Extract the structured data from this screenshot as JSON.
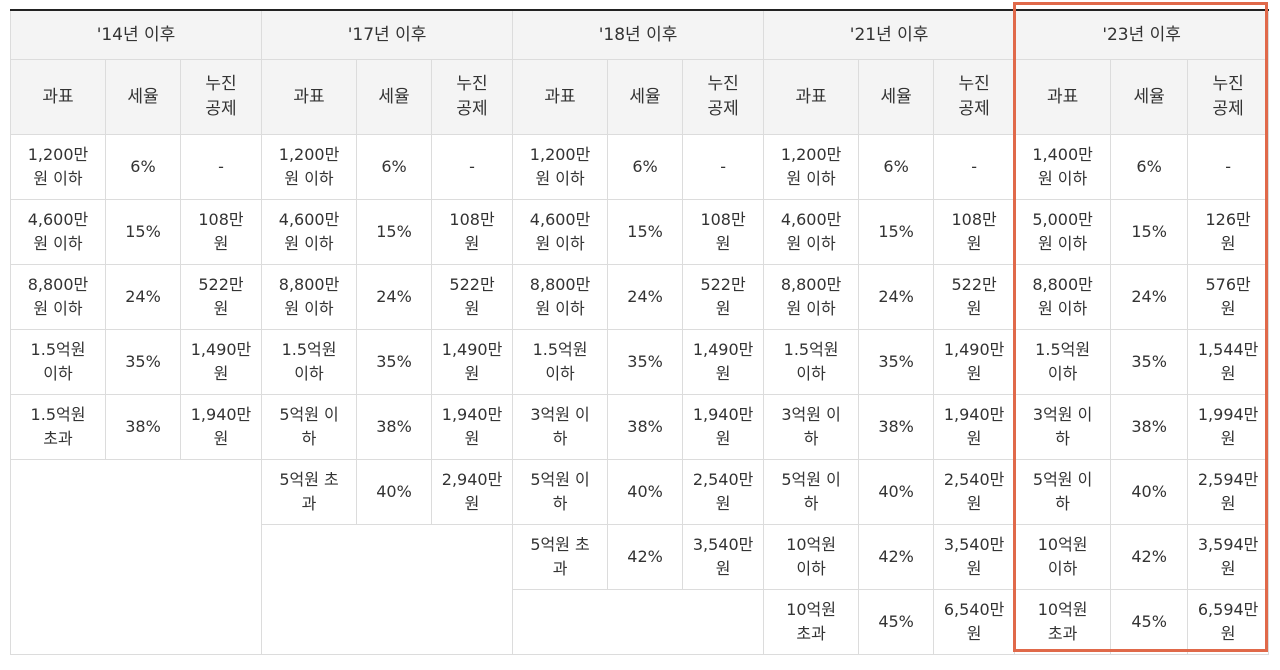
{
  "periods": [
    "'14년 이후",
    "'17년 이후",
    "'18년 이후",
    "'21년 이후",
    "'23년 이후"
  ],
  "col_headers": {
    "base": "과표",
    "rate": "세율",
    "deduction_line1": "누진",
    "deduction_line2": "공제"
  },
  "highlight_color": "#e0694a",
  "rows": [
    [
      {
        "b1": "1,200만",
        "b2": "원 이하",
        "r": "6%",
        "d1": "-",
        "d2": ""
      },
      {
        "b1": "1,200만",
        "b2": "원 이하",
        "r": "6%",
        "d1": "-",
        "d2": ""
      },
      {
        "b1": "1,200만",
        "b2": "원 이하",
        "r": "6%",
        "d1": "-",
        "d2": ""
      },
      {
        "b1": "1,200만",
        "b2": "원 이하",
        "r": "6%",
        "d1": "-",
        "d2": ""
      },
      {
        "b1": "1,400만",
        "b2": "원 이하",
        "r": "6%",
        "d1": "-",
        "d2": ""
      }
    ],
    [
      {
        "b1": "4,600만",
        "b2": "원 이하",
        "r": "15%",
        "d1": "108만",
        "d2": "원"
      },
      {
        "b1": "4,600만",
        "b2": "원 이하",
        "r": "15%",
        "d1": "108만",
        "d2": "원"
      },
      {
        "b1": "4,600만",
        "b2": "원 이하",
        "r": "15%",
        "d1": "108만",
        "d2": "원"
      },
      {
        "b1": "4,600만",
        "b2": "원 이하",
        "r": "15%",
        "d1": "108만",
        "d2": "원"
      },
      {
        "b1": "5,000만",
        "b2": "원 이하",
        "r": "15%",
        "d1": "126만",
        "d2": "원"
      }
    ],
    [
      {
        "b1": "8,800만",
        "b2": "원 이하",
        "r": "24%",
        "d1": "522만",
        "d2": "원"
      },
      {
        "b1": "8,800만",
        "b2": "원 이하",
        "r": "24%",
        "d1": "522만",
        "d2": "원"
      },
      {
        "b1": "8,800만",
        "b2": "원 이하",
        "r": "24%",
        "d1": "522만",
        "d2": "원"
      },
      {
        "b1": "8,800만",
        "b2": "원 이하",
        "r": "24%",
        "d1": "522만",
        "d2": "원"
      },
      {
        "b1": "8,800만",
        "b2": "원 이하",
        "r": "24%",
        "d1": "576만",
        "d2": "원"
      }
    ],
    [
      {
        "b1": "1.5억원",
        "b2": "이하",
        "r": "35%",
        "d1": "1,490만",
        "d2": "원"
      },
      {
        "b1": "1.5억원",
        "b2": "이하",
        "r": "35%",
        "d1": "1,490만",
        "d2": "원"
      },
      {
        "b1": "1.5억원",
        "b2": "이하",
        "r": "35%",
        "d1": "1,490만",
        "d2": "원"
      },
      {
        "b1": "1.5억원",
        "b2": "이하",
        "r": "35%",
        "d1": "1,490만",
        "d2": "원"
      },
      {
        "b1": "1.5억원",
        "b2": "이하",
        "r": "35%",
        "d1": "1,544만",
        "d2": "원"
      }
    ],
    [
      {
        "b1": "1.5억원",
        "b2": "초과",
        "r": "38%",
        "d1": "1,940만",
        "d2": "원"
      },
      {
        "b1": "5억원 이",
        "b2": "하",
        "r": "38%",
        "d1": "1,940만",
        "d2": "원"
      },
      {
        "b1": "3억원 이",
        "b2": "하",
        "r": "38%",
        "d1": "1,940만",
        "d2": "원"
      },
      {
        "b1": "3억원 이",
        "b2": "하",
        "r": "38%",
        "d1": "1,940만",
        "d2": "원"
      },
      {
        "b1": "3억원 이",
        "b2": "하",
        "r": "38%",
        "d1": "1,994만",
        "d2": "원"
      }
    ],
    [
      null,
      {
        "b1": "5억원 초",
        "b2": "과",
        "r": "40%",
        "d1": "2,940만",
        "d2": "원"
      },
      {
        "b1": "5억원 이",
        "b2": "하",
        "r": "40%",
        "d1": "2,540만",
        "d2": "원"
      },
      {
        "b1": "5억원 이",
        "b2": "하",
        "r": "40%",
        "d1": "2,540만",
        "d2": "원"
      },
      {
        "b1": "5억원 이",
        "b2": "하",
        "r": "40%",
        "d1": "2,594만",
        "d2": "원"
      }
    ],
    [
      null,
      null,
      {
        "b1": "5억원 초",
        "b2": "과",
        "r": "42%",
        "d1": "3,540만",
        "d2": "원"
      },
      {
        "b1": "10억원",
        "b2": "이하",
        "r": "42%",
        "d1": "3,540만",
        "d2": "원"
      },
      {
        "b1": "10억원",
        "b2": "이하",
        "r": "42%",
        "d1": "3,594만",
        "d2": "원"
      }
    ],
    [
      null,
      null,
      null,
      {
        "b1": "10억원",
        "b2": "초과",
        "r": "45%",
        "d1": "6,540만",
        "d2": "원"
      },
      {
        "b1": "10억원",
        "b2": "초과",
        "r": "45%",
        "d1": "6,594만",
        "d2": "원"
      }
    ]
  ]
}
